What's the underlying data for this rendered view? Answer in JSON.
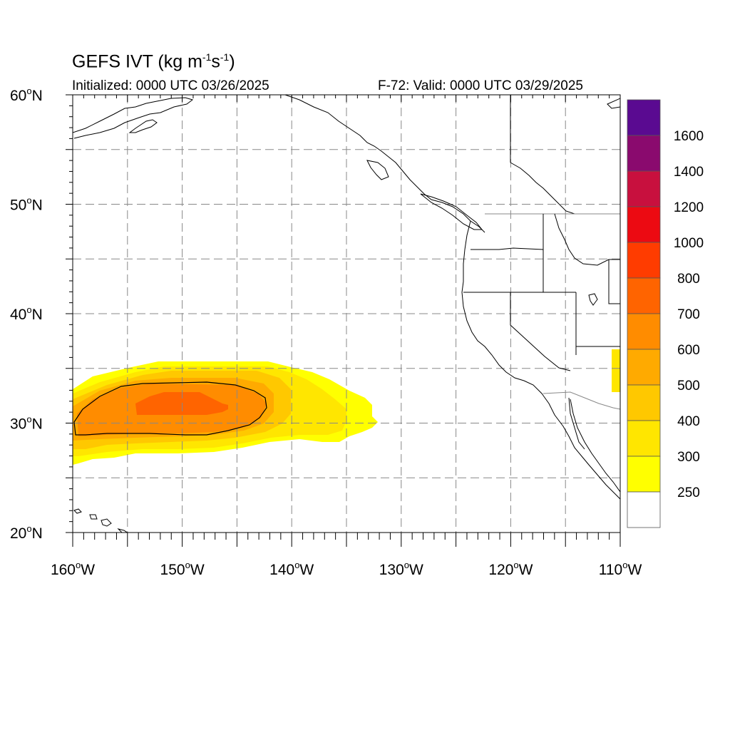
{
  "header": {
    "title_main": "GEFS IVT (kg m",
    "title_sup1": "-1",
    "title_mid": "s",
    "title_sup2": "-1",
    "title_end": ")",
    "initialized": "Initialized: 0000 UTC 03/26/2025",
    "valid": "F-72: Valid: 0000 UTC 03/29/2025"
  },
  "axes": {
    "lat_labels": [
      "60",
      "50",
      "40",
      "30",
      "20"
    ],
    "lat_suffix": "N",
    "lon_labels": [
      "160",
      "150",
      "140",
      "130",
      "120",
      "110"
    ],
    "lon_suffix": "W",
    "degree": "o"
  },
  "colorbar": {
    "labels": [
      "1600",
      "1400",
      "1200",
      "1000",
      "800",
      "700",
      "600",
      "500",
      "400",
      "300",
      "250"
    ],
    "colors": [
      "#5a0a91",
      "#8a0a6e",
      "#c8103e",
      "#ec0a12",
      "#ff3c00",
      "#ff6400",
      "#ff8c00",
      "#ffaa00",
      "#ffc800",
      "#ffe600",
      "#ffff00",
      "#ffffff"
    ]
  },
  "map_colors": {
    "level_250": "#ffff00",
    "level_300": "#ffe600",
    "level_400": "#ffc800",
    "level_500": "#ffaa00",
    "level_600": "#ff8c00",
    "level_700": "#ff6400",
    "coast": "#000000",
    "grid": "#888888"
  }
}
